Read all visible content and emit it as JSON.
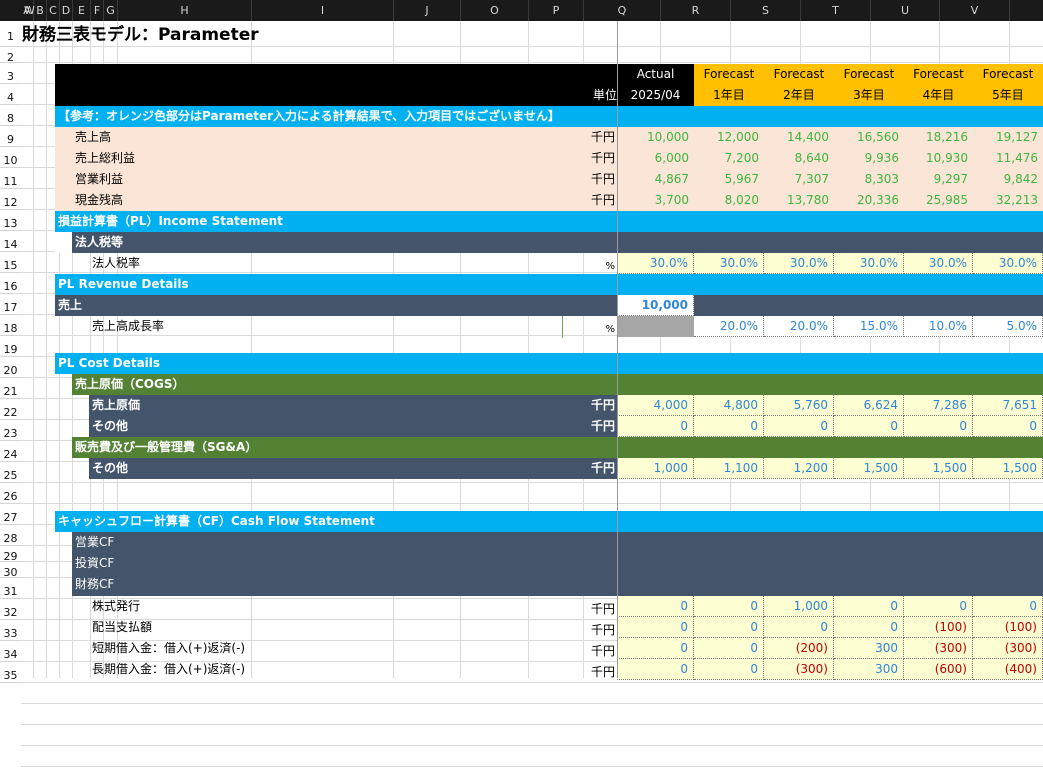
{
  "columns": [
    "A",
    "B",
    "C",
    "D",
    "E",
    "F",
    "G",
    "H",
    "I",
    "J",
    "O",
    "P",
    "Q",
    "R",
    "S",
    "T",
    "U",
    "V",
    "W"
  ],
  "row_numbers": [
    "1",
    "2",
    "3",
    "4",
    "8",
    "9",
    "10",
    "11",
    "12",
    "13",
    "14",
    "15",
    "16",
    "17",
    "18",
    "19",
    "20",
    "21",
    "22",
    "23",
    "24",
    "25",
    "26",
    "27",
    "28",
    "29",
    "30",
    "31",
    "32",
    "33",
    "34",
    "35"
  ],
  "title": "財務三表モデル：Parameter",
  "header": {
    "unit_label": "単位",
    "actual": "Actual",
    "actual_date": "2025/04",
    "forecast": "Forecast",
    "years": [
      "1年目",
      "2年目",
      "3年目",
      "4年目",
      "5年目"
    ]
  },
  "note": "【参考：オレンジ色部分はParameter入力による計算結果で、入力項目ではございません】",
  "summary": [
    {
      "label": "売上高",
      "unit": "千円",
      "values": [
        "10,000",
        "12,000",
        "14,400",
        "16,560",
        "18,216",
        "19,127"
      ]
    },
    {
      "label": "売上総利益",
      "unit": "千円",
      "values": [
        "6,000",
        "7,200",
        "8,640",
        "9,936",
        "10,930",
        "11,476"
      ]
    },
    {
      "label": "営業利益",
      "unit": "千円",
      "values": [
        "4,867",
        "5,967",
        "7,307",
        "8,303",
        "9,297",
        "9,842"
      ]
    },
    {
      "label": "現金残高",
      "unit": "千円",
      "values": [
        "3,700",
        "8,020",
        "13,780",
        "20,336",
        "25,985",
        "32,213"
      ]
    }
  ],
  "pl": {
    "title": "損益計算書（PL）Income Statement",
    "tax_group": "法人税等",
    "tax_rate_label": "法人税率",
    "tax_unit": "%",
    "tax_values": [
      "30.0%",
      "30.0%",
      "30.0%",
      "30.0%",
      "30.0%",
      "30.0%"
    ]
  },
  "revenue": {
    "title": "PL Revenue Details",
    "sales_label": "売上",
    "sales_value": "10,000",
    "growth_label": "売上高成長率",
    "growth_unit": "%",
    "growth_values": [
      "20.0%",
      "20.0%",
      "15.0%",
      "10.0%",
      "5.0%"
    ]
  },
  "cost": {
    "title": "PL Cost Details",
    "cogs_group": "売上原価（COGS）",
    "cogs_label": "売上原価",
    "cogs_unit": "千円",
    "cogs_values": [
      "4,000",
      "4,800",
      "5,760",
      "6,624",
      "7,286",
      "7,651"
    ],
    "other_label": "その他",
    "other_unit": "千円",
    "other_values": [
      "0",
      "0",
      "0",
      "0",
      "0",
      "0"
    ],
    "sga_group": "販売費及び一般管理費（SG&A）",
    "sga_other_label": "その他",
    "sga_other_unit": "千円",
    "sga_other_values": [
      "1,000",
      "1,100",
      "1,200",
      "1,500",
      "1,500",
      "1,500"
    ]
  },
  "cf": {
    "title": "キャッシュフロー計算書（CF）Cash Flow Statement",
    "operating": "営業CF",
    "investing": "投資CF",
    "financing": "財務CF",
    "items": [
      {
        "label": "株式発行",
        "unit": "千円",
        "values": [
          "0",
          "0",
          "1,000",
          "0",
          "0",
          "0"
        ]
      },
      {
        "label": "配当支払額",
        "unit": "千円",
        "values": [
          "0",
          "0",
          "0",
          "0",
          "(100)",
          "(100)"
        ]
      },
      {
        "label": "短期借入金：借入(+)返済(-)",
        "unit": "千円",
        "values": [
          "0",
          "0",
          "(200)",
          "300",
          "(300)",
          "(300)"
        ]
      },
      {
        "label": "長期借入金：借入(+)返済(-)",
        "unit": "千円",
        "values": [
          "0",
          "0",
          "(300)",
          "300",
          "(600)",
          "(400)"
        ]
      }
    ]
  },
  "colors": {
    "black_header": "#000000",
    "forecast_orange": "#ffc000",
    "section_blue": "#00b0f0",
    "slate": "#44546a",
    "olive_green": "#548235",
    "summary_peach": "#fbe5d6",
    "input_yellow": "#fefed3"
  }
}
